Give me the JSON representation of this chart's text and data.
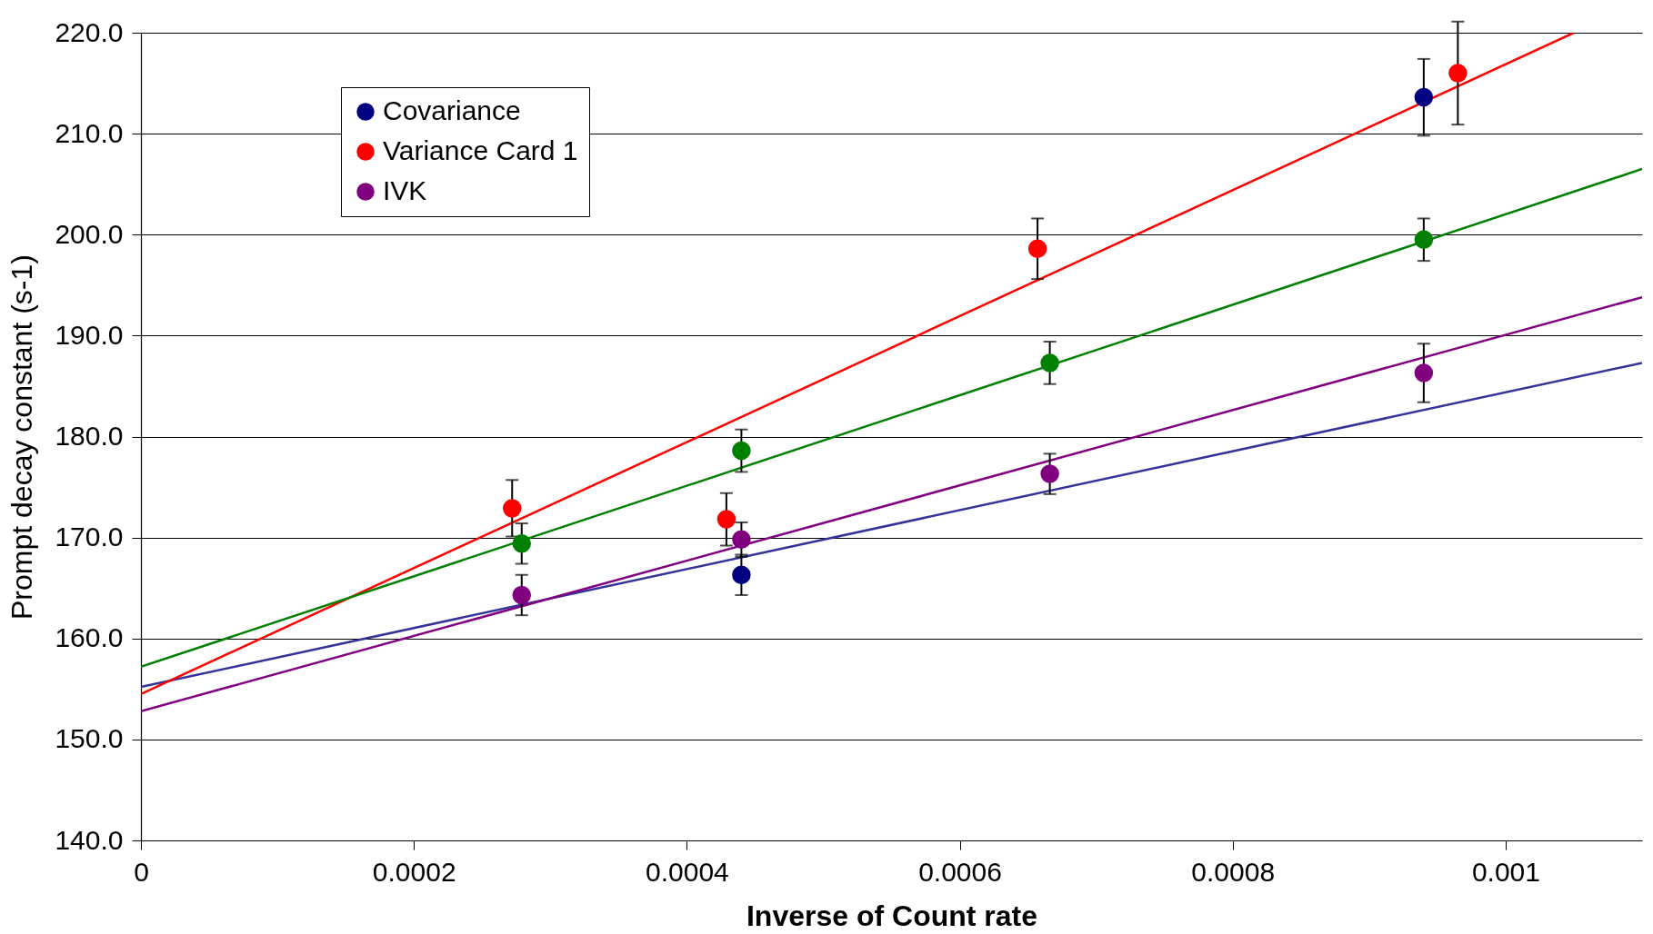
{
  "chart_data": {
    "type": "scatter",
    "xlabel": "Inverse of Count rate",
    "ylabel": "Prompt decay constant (s-1)",
    "xlim": [
      0,
      0.0011
    ],
    "ylim": [
      140,
      220
    ],
    "xticks": [
      0,
      0.0002,
      0.0004,
      0.0006,
      0.0008,
      0.001
    ],
    "yticks": [
      {
        "value": 140,
        "label": "140.0"
      },
      {
        "value": 150,
        "label": "150.0"
      },
      {
        "value": 160,
        "label": "160.0"
      },
      {
        "value": 170,
        "label": "170.0"
      },
      {
        "value": 180,
        "label": "180.0"
      },
      {
        "value": 190,
        "label": "190.0"
      },
      {
        "value": 200,
        "label": "200.0"
      },
      {
        "value": 210,
        "label": "210.0"
      },
      {
        "value": 220,
        "label": "220.0"
      }
    ],
    "grid": "y",
    "legend": "top left",
    "marker": "circle",
    "series": [
      {
        "type": "line",
        "marker": "none",
        "color": "#333399",
        "x": [
          0,
          0.0011
        ],
        "values": [
          155.2,
          187.3
        ]
      },
      {
        "type": "line",
        "marker": "none",
        "color": "#ff0000",
        "x": [
          0,
          0.00105
        ],
        "values": [
          154.5,
          220.0
        ]
      },
      {
        "type": "line",
        "marker": "none",
        "color": "#008000",
        "x": [
          0,
          0.0011
        ],
        "values": [
          157.2,
          206.5
        ]
      },
      {
        "type": "line",
        "marker": "none",
        "color": "#800080",
        "x": [
          0,
          0.0011
        ],
        "values": [
          152.8,
          193.8
        ]
      },
      {
        "name": "Covariance",
        "color": "#000080",
        "x": [
          0.00044,
          0.00094
        ],
        "values": [
          166.3,
          213.6
        ],
        "errors": [
          2.0,
          3.8
        ]
      },
      {
        "name": "Variance Card 1",
        "color": "#ff0000",
        "x": [
          0.000272,
          0.000429,
          0.000657,
          0.000965
        ],
        "values": [
          172.9,
          171.8,
          198.6,
          216.0
        ],
        "errors": [
          2.8,
          2.6,
          3.0,
          5.1
        ]
      },
      {
        "color": "#008000",
        "x": [
          0.000279,
          0.00044,
          0.000666,
          0.00094
        ],
        "values": [
          169.4,
          178.6,
          187.3,
          199.5
        ],
        "errors": [
          2.0,
          2.1,
          2.1,
          2.1
        ]
      },
      {
        "name": "IVK",
        "color": "#800080",
        "x": [
          0.000279,
          0.00044,
          0.000666,
          0.00094
        ],
        "values": [
          164.3,
          169.8,
          176.3,
          186.3
        ],
        "errors": [
          2.0,
          1.7,
          2.0,
          2.9
        ]
      }
    ]
  }
}
